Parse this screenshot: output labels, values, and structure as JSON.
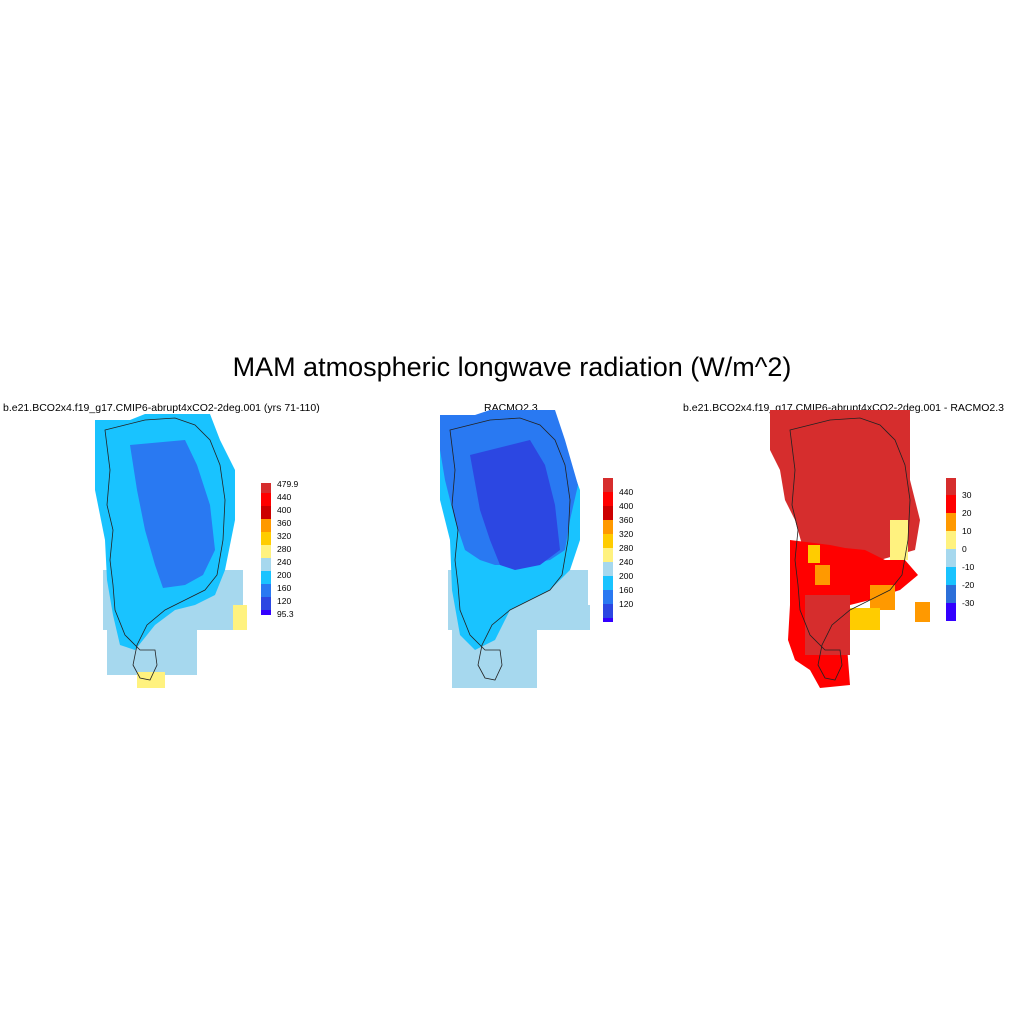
{
  "title": "MAM atmospheric longwave radiation (W/m^2)",
  "panels": [
    {
      "title": "b.e21.BCO2x4.f19_g17.CMIP6-abrupt4xCO2-2deg.001 (yrs 71-110)",
      "colorbar": {
        "labels": [
          "479.9",
          "440",
          "400",
          "360",
          "320",
          "280",
          "240",
          "200",
          "160",
          "120",
          "95.3"
        ],
        "colors": [
          "#d62d2d",
          "#ff0000",
          "#cc0000",
          "#ff9900",
          "#ffcc00",
          "#fff27f",
          "#a6d8ee",
          "#19c3ff",
          "#2979f2",
          "#2c47e2",
          "#3300ff"
        ]
      }
    },
    {
      "title": "RACMO2.3",
      "colorbar": {
        "labels": [
          "440",
          "400",
          "360",
          "320",
          "280",
          "240",
          "200",
          "160",
          "120"
        ],
        "colors": [
          "#d62d2d",
          "#ff0000",
          "#cc0000",
          "#ff9900",
          "#ffcc00",
          "#fff27f",
          "#a6d8ee",
          "#19c3ff",
          "#2979f2",
          "#2c47e2",
          "#3300ff"
        ]
      }
    },
    {
      "title": "b.e21.BCO2x4.f19_g17.CMIP6-abrupt4xCO2-2deg.001 - RACMO2.3",
      "colorbar": {
        "labels": [
          "30",
          "20",
          "10",
          "0",
          "-10",
          "-20",
          "-30"
        ],
        "colors": [
          "#d62d2d",
          "#ff0000",
          "#ff9900",
          "#fff27f",
          "#a6d8ee",
          "#19c3ff",
          "#2c6fd9",
          "#3300ff"
        ]
      }
    }
  ]
}
